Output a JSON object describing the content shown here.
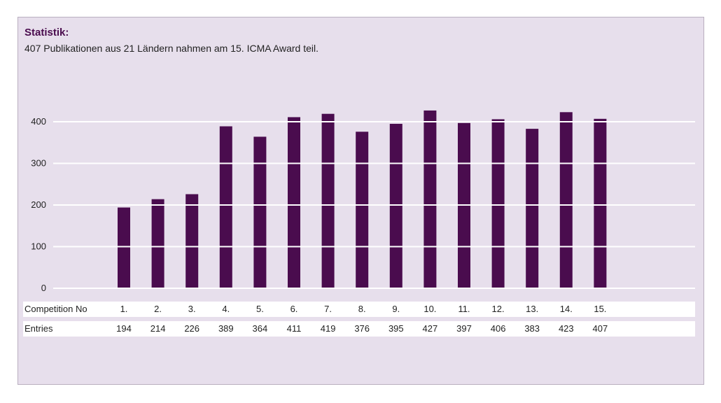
{
  "heading": {
    "title": "Statistik:",
    "subtitle": "407 Publikationen aus 21 Ländern nahmen am 15. ICMA Award teil."
  },
  "table": {
    "row1_label": "Competition No",
    "row2_label": "Entries"
  },
  "colors": {
    "background": "#e7dfec",
    "bar": "#4a0c4e",
    "title": "#4a0c4e",
    "gridline": "#ffffff"
  },
  "chart_data": {
    "type": "bar",
    "title": "",
    "xlabel": "",
    "ylabel": "",
    "categories": [
      "1.",
      "2.",
      "3.",
      "4.",
      "5.",
      "6.",
      "7.",
      "8.",
      "9.",
      "10.",
      "11.",
      "12.",
      "13.",
      "14.",
      "15."
    ],
    "values": [
      194,
      214,
      226,
      389,
      364,
      411,
      419,
      376,
      395,
      427,
      397,
      406,
      383,
      423,
      407
    ],
    "yticks": [
      0,
      100,
      200,
      300,
      400
    ],
    "ylim": [
      0,
      400
    ],
    "grid": true,
    "legend": "none"
  }
}
